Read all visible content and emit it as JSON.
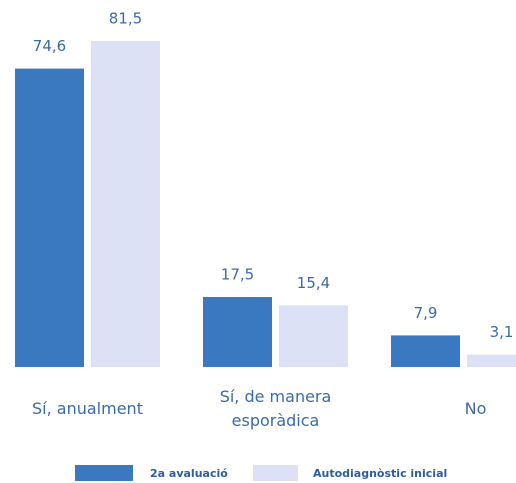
{
  "chart_data": {
    "type": "bar",
    "categories": [
      "Sí, anualment",
      "Sí, de manera esporàdica",
      "No"
    ],
    "series": [
      {
        "name": "2a avaluació",
        "color": "#3a78bf",
        "values": [
          74.6,
          17.5,
          7.9
        ],
        "value_labels": [
          "74,6",
          "17,5",
          "7,9"
        ]
      },
      {
        "name": "Autodiagnòstic inicial",
        "color": "#dde1f5",
        "values": [
          81.5,
          15.4,
          3.1
        ],
        "value_labels": [
          "81,5",
          "15,4",
          "3,1"
        ]
      }
    ]
  }
}
